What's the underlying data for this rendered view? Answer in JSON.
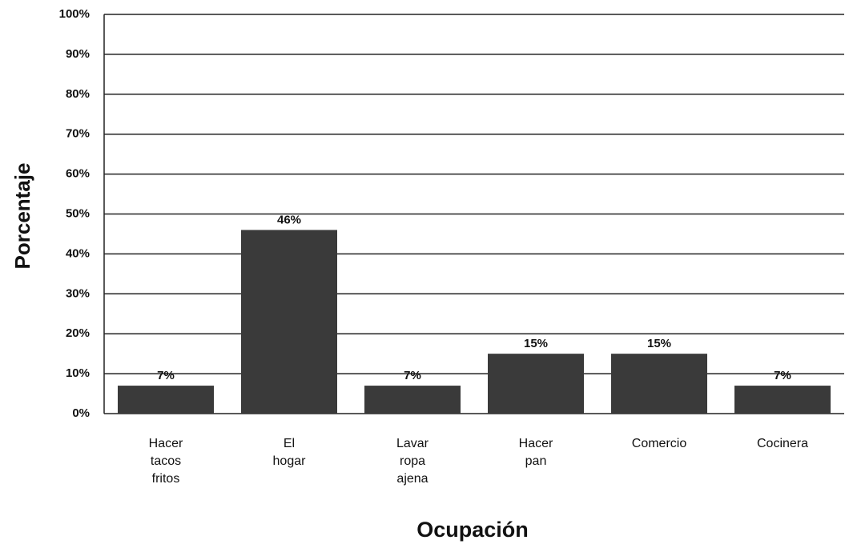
{
  "chart_data": {
    "type": "bar",
    "x_label": "Ocupación",
    "y_label": "Porcentaje",
    "categories": [
      "Hacer tacos fritos",
      "El hogar",
      "Lavar ropa ajena",
      "Hacer pan",
      "Comercio",
      "Cocinera"
    ],
    "values": [
      7,
      46,
      7,
      15,
      15,
      7
    ],
    "value_labels": [
      "7%",
      "46%",
      "7%",
      "15%",
      "15%",
      "7%"
    ],
    "color": "#3a3a3a",
    "ylim": [
      0,
      100
    ],
    "yticks": [
      {
        "value": 0,
        "label": "0%"
      },
      {
        "value": 10,
        "label": "10%"
      },
      {
        "value": 20,
        "label": "20%"
      },
      {
        "value": 30,
        "label": "30%"
      },
      {
        "value": 40,
        "label": "40%"
      },
      {
        "value": 50,
        "label": "50%"
      },
      {
        "value": 60,
        "label": "60%"
      },
      {
        "value": 70,
        "label": "70%"
      },
      {
        "value": 80,
        "label": "80%"
      },
      {
        "value": 90,
        "label": "90%"
      },
      {
        "value": 100,
        "label": "100%"
      }
    ],
    "grid": true
  }
}
